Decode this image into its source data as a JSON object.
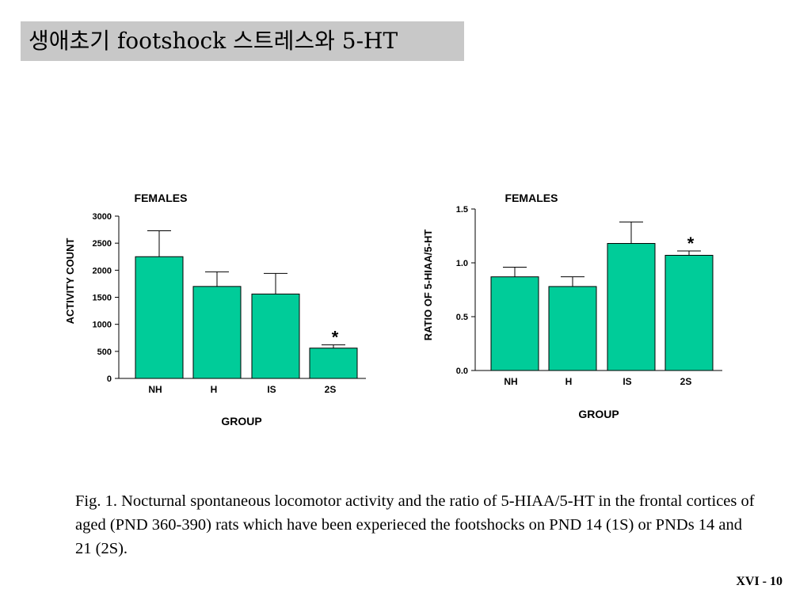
{
  "title": "생애초기 footshock 스트레스와 5-HT",
  "chart_data": [
    {
      "type": "bar",
      "title": "FEMALES",
      "xlabel": "GROUP",
      "ylabel": "ACTIVITY COUNT",
      "categories": [
        "NH",
        "H",
        "IS",
        "2S"
      ],
      "values": [
        2250,
        1700,
        1560,
        560
      ],
      "errors": [
        480,
        270,
        380,
        60
      ],
      "ylim": [
        0,
        3000
      ],
      "yticks": [
        "0",
        "500",
        "1000",
        "1500",
        "2000",
        "2500",
        "3000"
      ],
      "annotations": [
        {
          "category": "2S",
          "text": "*"
        }
      ],
      "bar_color": "#00cc99",
      "grid": false
    },
    {
      "type": "bar",
      "title": "FEMALES",
      "xlabel": "GROUP",
      "ylabel": "RATIO OF 5-HIAA/5-HT",
      "categories": [
        "NH",
        "H",
        "IS",
        "2S"
      ],
      "values": [
        0.87,
        0.78,
        1.18,
        1.07
      ],
      "errors": [
        0.09,
        0.09,
        0.2,
        0.04
      ],
      "ylim": [
        0,
        1.5
      ],
      "yticks": [
        "0.0",
        "0.5",
        "1.0",
        "1.5"
      ],
      "annotations": [
        {
          "category": "2S",
          "text": "*"
        }
      ],
      "bar_color": "#00cc99",
      "grid": false
    }
  ],
  "caption": "Fig. 1. Nocturnal spontaneous locomotor activity and the ratio of 5-HIAA/5-HT in the frontal cortices of aged (PND 360-390) rats which have been experieced the footshocks on PND 14 (1S) or PNDs 14 and 21 (2S).",
  "page_number": "XVI - 10"
}
